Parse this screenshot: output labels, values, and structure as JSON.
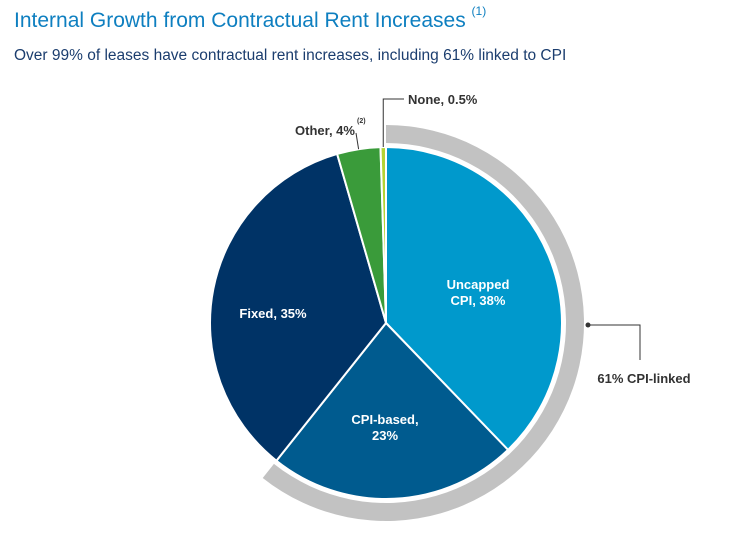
{
  "title": "Internal Growth from Contractual Rent Increases",
  "title_note": "(1)",
  "subtitle": "Over 99% of leases have contractual rent increases, including 61% linked to CPI",
  "chart_data": {
    "type": "pie",
    "title": "Internal Growth from Contractual Rent Increases",
    "slices": [
      {
        "name": "Uncapped CPI",
        "value": 38,
        "label_lines": [
          "Uncapped",
          "CPI, 38%"
        ],
        "color": "#0099cc"
      },
      {
        "name": "CPI-based",
        "value": 23,
        "label_lines": [
          "CPI-based,",
          "23%"
        ],
        "color": "#005b8f"
      },
      {
        "name": "Fixed",
        "value": 35,
        "label_lines": [
          "Fixed, 35%"
        ],
        "color": "#003366"
      },
      {
        "name": "Other",
        "value": 4,
        "label_lines": [
          "Other, 4%"
        ],
        "note": "(2)",
        "color": "#3a9b3a"
      },
      {
        "name": "None",
        "value": 0.5,
        "label_lines": [
          "None, 0.5%"
        ],
        "color": "#b5d334"
      }
    ],
    "group_annotation": {
      "label": "61% CPI-linked",
      "members": [
        "Uncapped CPI",
        "CPI-based"
      ],
      "value": 61,
      "color": "#c2c2c2"
    }
  }
}
